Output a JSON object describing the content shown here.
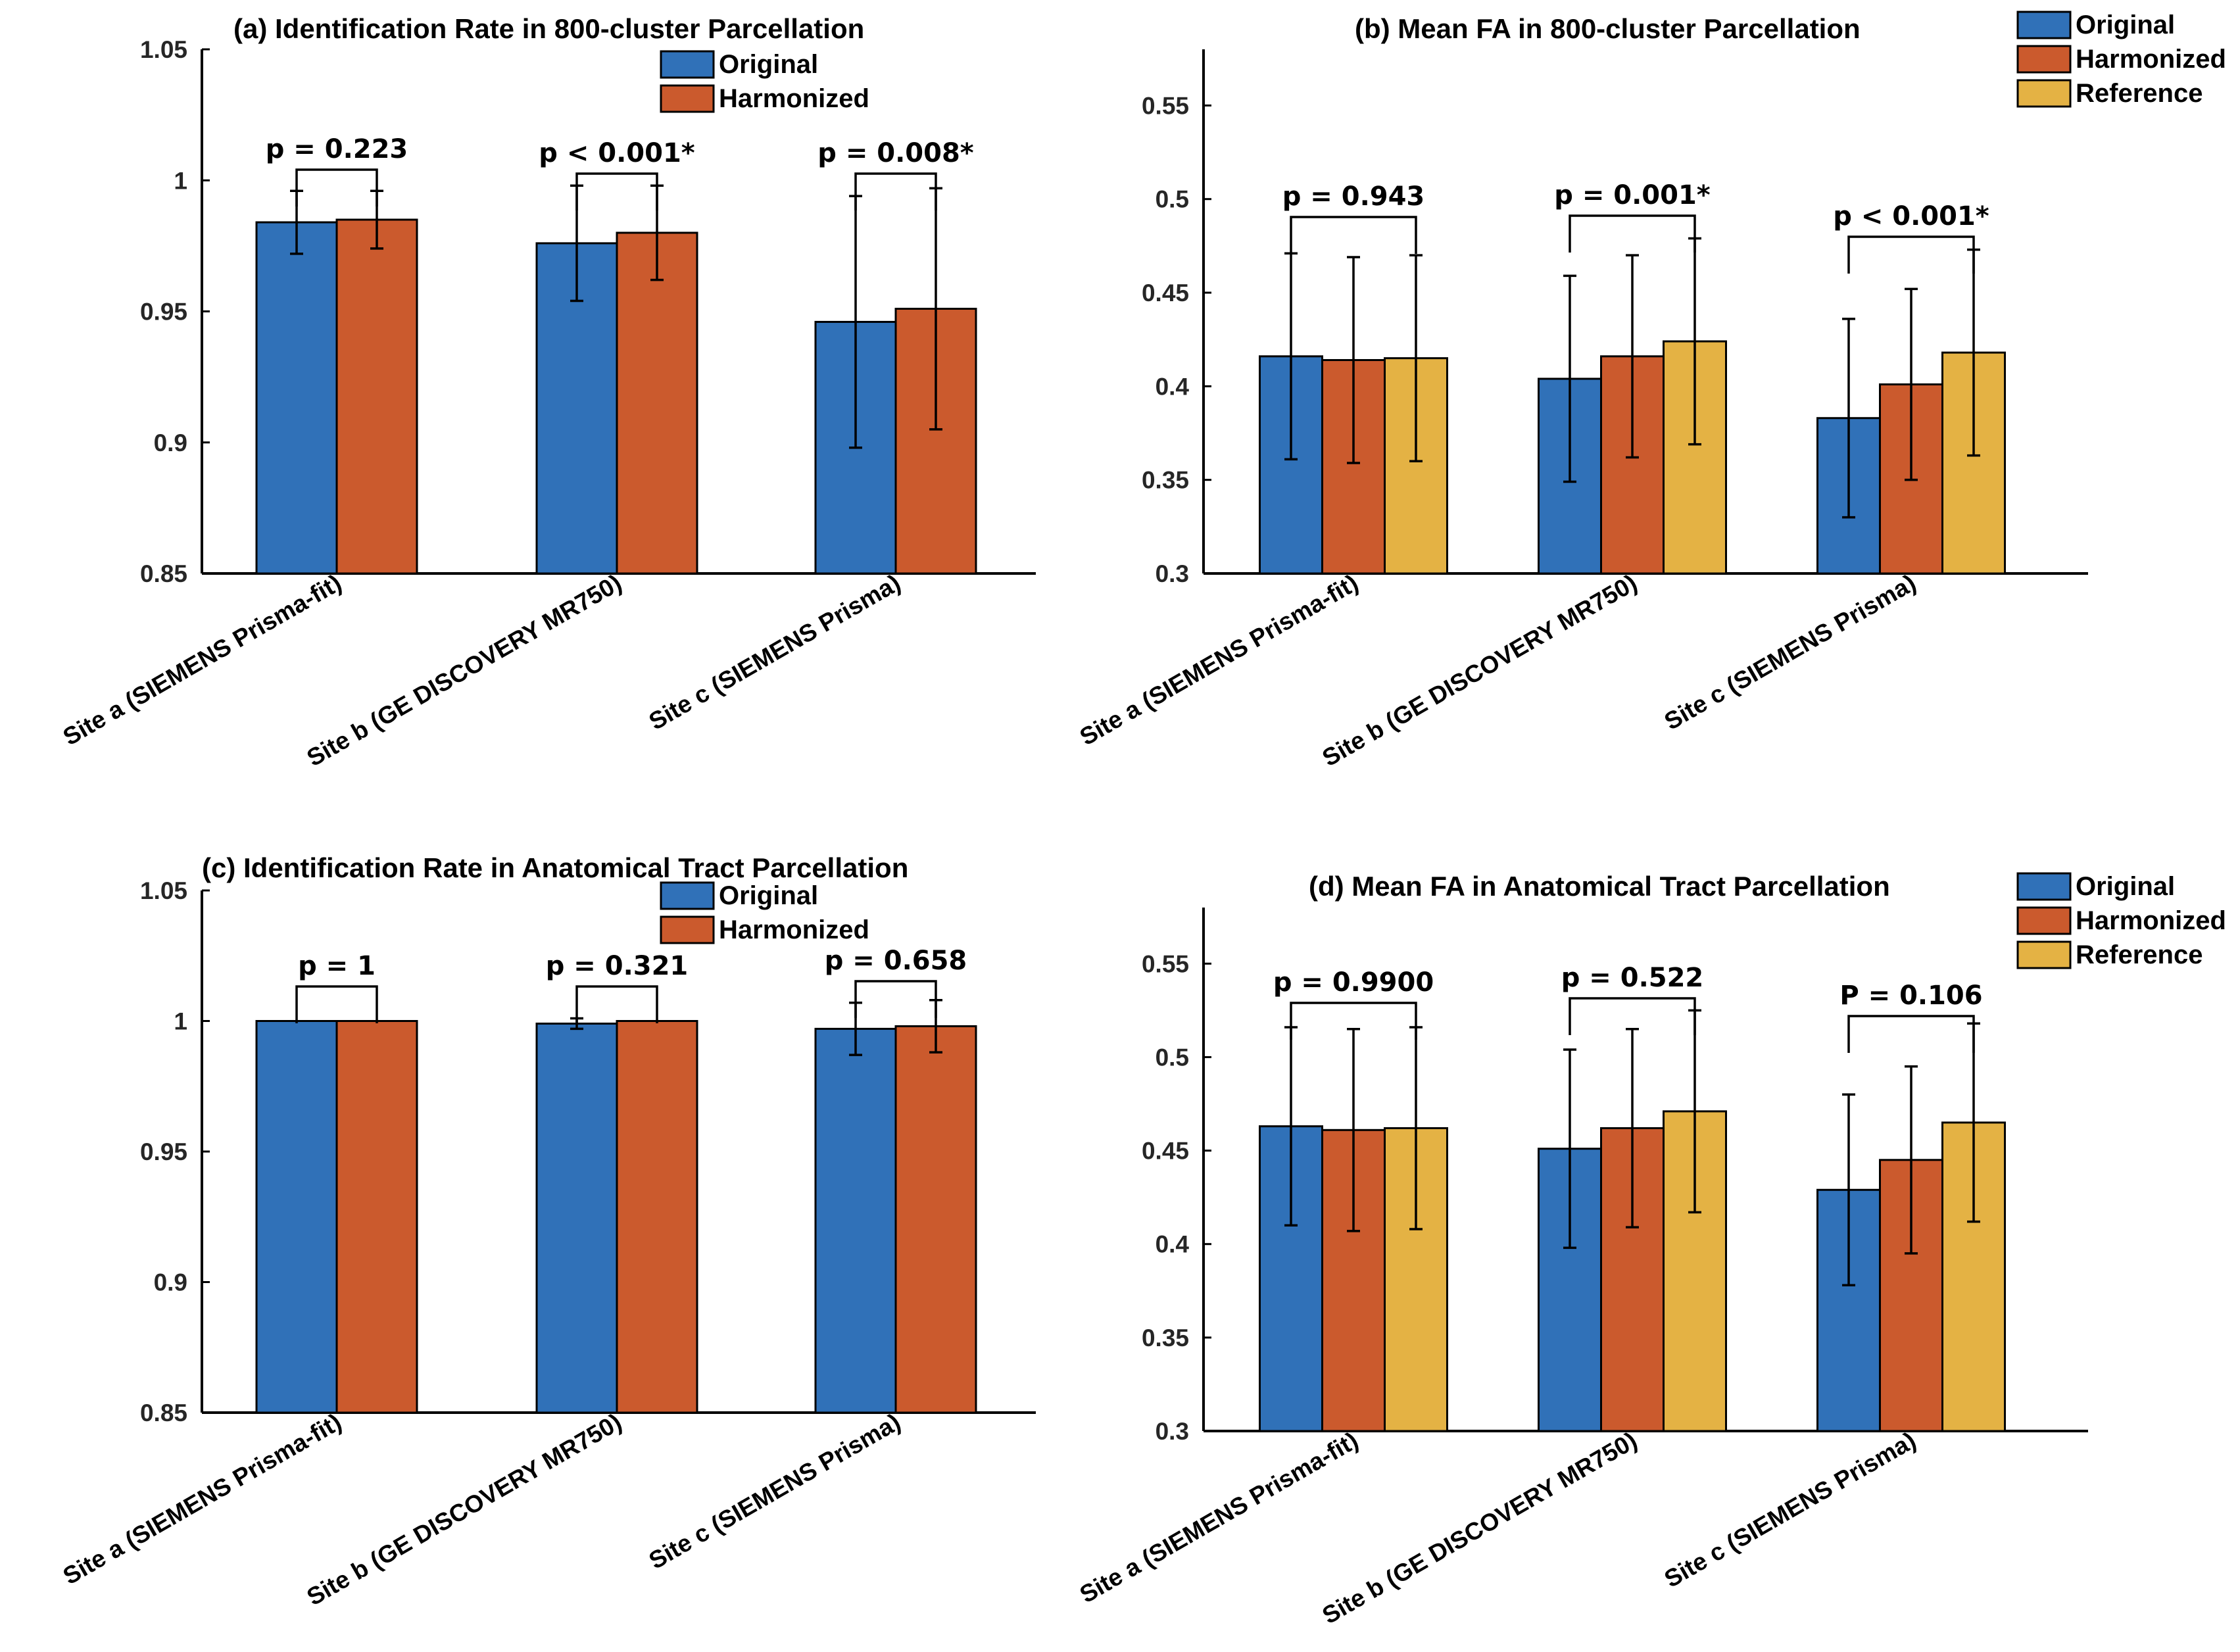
{
  "colors": {
    "Original": "#3071B8",
    "Harmonized": "#CB5A2D",
    "Reference": "#E4B244"
  },
  "chart_data": [
    {
      "id": "a",
      "type": "bar",
      "title": "(a) Identification Rate in 800-cluster Parcellation",
      "categories": [
        "Site a (SIEMENS Prisma-fit)",
        "Site b (GE DISCOVERY MR750)",
        "Site c (SIEMENS Prisma)"
      ],
      "series": [
        {
          "name": "Original",
          "values": [
            0.984,
            0.976,
            0.946
          ],
          "err": [
            0.012,
            0.022,
            0.048
          ]
        },
        {
          "name": "Harmonized",
          "values": [
            0.985,
            0.98,
            0.951
          ],
          "err": [
            0.011,
            0.018,
            0.046
          ]
        }
      ],
      "pvalues": [
        "p = 0.223",
        "p < 0.001*",
        "p = 0.008*"
      ],
      "ylim": [
        0.85,
        1.05
      ],
      "yticks": [
        "0.85",
        "0.9",
        "0.95",
        "1",
        "1.05"
      ],
      "legend": "top-center"
    },
    {
      "id": "b",
      "type": "bar",
      "title": "(b) Mean FA in 800-cluster Parcellation",
      "categories": [
        "Site a (SIEMENS Prisma-fit)",
        "Site b (GE DISCOVERY MR750)",
        "Site c (SIEMENS Prisma)"
      ],
      "series": [
        {
          "name": "Original",
          "values": [
            0.416,
            0.404,
            0.383
          ],
          "err": [
            0.055,
            0.055,
            0.053
          ]
        },
        {
          "name": "Harmonized",
          "values": [
            0.414,
            0.416,
            0.401
          ],
          "err": [
            0.055,
            0.054,
            0.051
          ]
        },
        {
          "name": "Reference",
          "values": [
            0.415,
            0.424,
            0.418
          ],
          "err": [
            0.055,
            0.055,
            0.055
          ]
        }
      ],
      "pvalues": [
        "p = 0.943",
        "p = 0.001*",
        "p < 0.001*"
      ],
      "ylim": [
        0.3,
        0.58
      ],
      "yticks": [
        "0.3",
        "0.35",
        "0.4",
        "0.45",
        "0.5",
        "0.55"
      ],
      "legend": "top-right"
    },
    {
      "id": "c",
      "type": "bar",
      "title": "(c) Identification Rate in Anatomical Tract Parcellation",
      "categories": [
        "Site a (SIEMENS Prisma-fit)",
        "Site b (GE DISCOVERY MR750)",
        "Site c (SIEMENS Prisma)"
      ],
      "series": [
        {
          "name": "Original",
          "values": [
            1.0,
            0.999,
            0.997
          ],
          "err": [
            0,
            0.002,
            0.01
          ]
        },
        {
          "name": "Harmonized",
          "values": [
            1.0,
            1.0,
            0.998
          ],
          "err": [
            0,
            0,
            0.01
          ]
        }
      ],
      "pvalues": [
        "p = 1",
        "p = 0.321",
        "p = 0.658"
      ],
      "ylim": [
        0.85,
        1.05
      ],
      "yticks": [
        "0.85",
        "0.9",
        "0.95",
        "1",
        "1.05"
      ],
      "legend": "top-center"
    },
    {
      "id": "d",
      "type": "bar",
      "title": "(d) Mean FA in Anatomical Tract Parcellation",
      "categories": [
        "Site a (SIEMENS Prisma-fit)",
        "Site b (GE DISCOVERY MR750)",
        "Site c (SIEMENS Prisma)"
      ],
      "series": [
        {
          "name": "Original",
          "values": [
            0.463,
            0.451,
            0.429
          ],
          "err": [
            0.053,
            0.053,
            0.051
          ]
        },
        {
          "name": "Harmonized",
          "values": [
            0.461,
            0.462,
            0.445
          ],
          "err": [
            0.054,
            0.053,
            0.05
          ]
        },
        {
          "name": "Reference",
          "values": [
            0.462,
            0.471,
            0.465
          ],
          "err": [
            0.054,
            0.054,
            0.053
          ]
        }
      ],
      "pvalues": [
        "p = 0.9900",
        "p = 0.522",
        "P = 0.106"
      ],
      "ylim": [
        0.3,
        0.58
      ],
      "yticks": [
        "0.3",
        "0.35",
        "0.4",
        "0.45",
        "0.5",
        "0.55"
      ],
      "legend": "top-right"
    }
  ]
}
